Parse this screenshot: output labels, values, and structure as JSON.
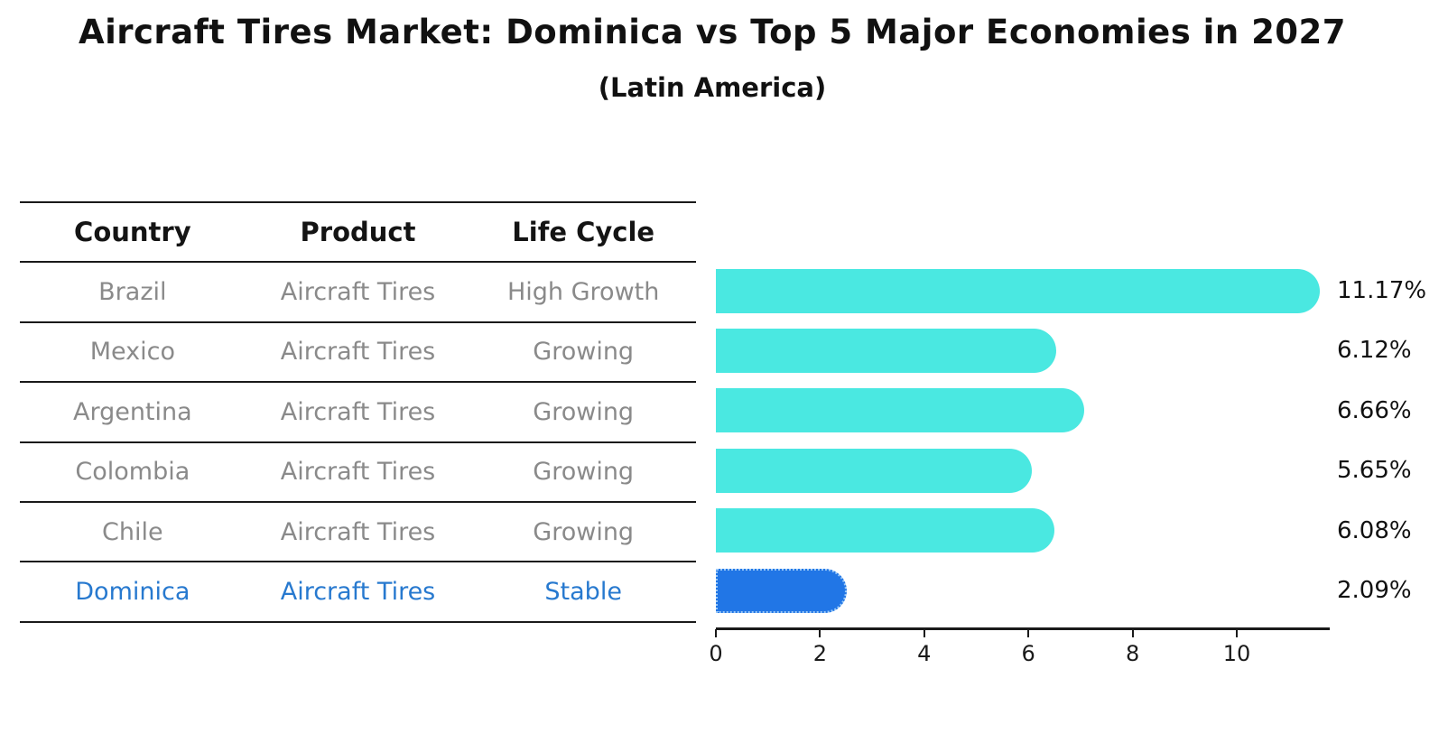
{
  "title": "Aircraft Tires Market: Dominica vs Top 5 Major Economies in 2027",
  "subtitle": "(Latin America)",
  "table": {
    "headers": [
      "Country",
      "Product",
      "Life Cycle"
    ],
    "rows": [
      {
        "country": "Brazil",
        "product": "Aircraft Tires",
        "life_cycle": "High Growth",
        "highlight": false
      },
      {
        "country": "Mexico",
        "product": "Aircraft Tires",
        "life_cycle": "Growing",
        "highlight": false
      },
      {
        "country": "Argentina",
        "product": "Aircraft Tires",
        "life_cycle": "Growing",
        "highlight": false
      },
      {
        "country": "Colombia",
        "product": "Aircraft Tires",
        "life_cycle": "Growing",
        "highlight": false
      },
      {
        "country": "Chile",
        "product": "Aircraft Tires",
        "life_cycle": "Growing",
        "highlight": false
      },
      {
        "country": "Dominica",
        "product": "Aircraft Tires",
        "life_cycle": "Stable",
        "highlight": true
      }
    ]
  },
  "chart_data": {
    "type": "bar",
    "orientation": "horizontal",
    "title": "Aircraft Tires Market: Dominica vs Top 5 Major Economies in 2027 (Latin America)",
    "categories": [
      "Brazil",
      "Mexico",
      "Argentina",
      "Colombia",
      "Chile",
      "Dominica"
    ],
    "values": [
      11.17,
      6.12,
      6.66,
      5.65,
      6.08,
      2.09
    ],
    "value_labels": [
      "11.17%",
      "6.12%",
      "6.66%",
      "5.65%",
      "6.08%",
      "2.09%"
    ],
    "unit": "%",
    "xlabel": "",
    "ylabel": "",
    "xlim": [
      0,
      11.78
    ],
    "xticks": [
      0,
      2,
      4,
      6,
      8,
      10
    ],
    "grid": false,
    "legend": null,
    "bar_color": "#4AE8E1",
    "highlight_color": "#2176E6",
    "highlight_index": 5
  },
  "colors": {
    "bar_cyan": "#4AE8E1",
    "bar_blue": "#2176E6",
    "highlight_dotted_border": "#9CCAF8",
    "table_text_gray": "#8A8A8A",
    "highlight_text_blue": "#2779CF",
    "line_black": "#1A1A1A",
    "title_black": "#111111"
  }
}
